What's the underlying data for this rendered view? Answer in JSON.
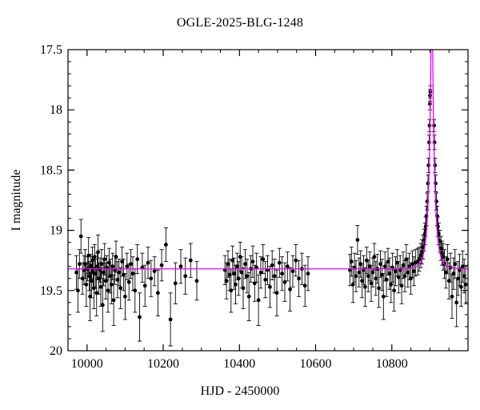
{
  "figure": {
    "title": "OGLE-2025-BLG-1248",
    "xlabel": "HJD - 2450000",
    "ylabel": "I magnitude"
  },
  "chart_data": {
    "type": "scatter",
    "title": "OGLE-2025-BLG-1248",
    "xlabel": "HJD - 2450000",
    "ylabel": "I magnitude",
    "xlim": [
      9950,
      11000
    ],
    "ylim": [
      20,
      17.5
    ],
    "y_axis_inverted": true,
    "x_ticks": [
      10000,
      10200,
      10400,
      10600,
      10800
    ],
    "x_minor_step": 50,
    "y_ticks": [
      17.5,
      18,
      18.5,
      19,
      19.5,
      20
    ],
    "y_minor_step": 0.1,
    "grid": false,
    "legend": null,
    "colors": {
      "points": "#000000",
      "model": "#f000f0",
      "frame": "#000000",
      "background": "#ffffff"
    },
    "model": {
      "type": "paczynski-point-lens",
      "t0": 10905,
      "tE": 14,
      "u0": 0.1,
      "baseline_mag": 19.32
    },
    "points": [
      [
        9972,
        19.35,
        0.14
      ],
      [
        9976,
        19.5,
        0.18
      ],
      [
        9980,
        19.28,
        0.12
      ],
      [
        9984,
        19.05,
        0.14
      ],
      [
        9988,
        19.4,
        0.13
      ],
      [
        9992,
        19.33,
        0.12
      ],
      [
        9995,
        19.28,
        0.12
      ],
      [
        9998,
        19.45,
        0.18
      ],
      [
        10001,
        19.32,
        0.1
      ],
      [
        10004,
        19.21,
        0.15
      ],
      [
        10006,
        19.38,
        0.12
      ],
      [
        10008,
        19.55,
        0.2
      ],
      [
        10010,
        19.3,
        0.1
      ],
      [
        10012,
        19.42,
        0.14
      ],
      [
        10014,
        19.25,
        0.11
      ],
      [
        10016,
        19.35,
        0.13
      ],
      [
        10018,
        19.48,
        0.17
      ],
      [
        10020,
        19.22,
        0.1
      ],
      [
        10022,
        19.36,
        0.12
      ],
      [
        10025,
        19.52,
        0.19
      ],
      [
        10027,
        19.3,
        0.11
      ],
      [
        10029,
        19.18,
        0.14
      ],
      [
        10031,
        19.4,
        0.13
      ],
      [
        10034,
        19.33,
        0.1
      ],
      [
        10036,
        19.47,
        0.16
      ],
      [
        10038,
        19.28,
        0.12
      ],
      [
        10041,
        19.62,
        0.22
      ],
      [
        10043,
        19.35,
        0.11
      ],
      [
        10046,
        19.24,
        0.13
      ],
      [
        10049,
        19.42,
        0.15
      ],
      [
        10052,
        19.31,
        0.1
      ],
      [
        10055,
        19.5,
        0.18
      ],
      [
        10058,
        19.27,
        0.12
      ],
      [
        10061,
        19.38,
        0.14
      ],
      [
        10064,
        19.45,
        0.16
      ],
      [
        10067,
        19.3,
        0.11
      ],
      [
        10070,
        19.58,
        0.21
      ],
      [
        10073,
        19.33,
        0.12
      ],
      [
        10076,
        19.22,
        0.13
      ],
      [
        10080,
        19.41,
        0.15
      ],
      [
        10084,
        19.35,
        0.11
      ],
      [
        10088,
        19.48,
        0.17
      ],
      [
        10092,
        19.26,
        0.12
      ],
      [
        10096,
        19.37,
        0.13
      ],
      [
        10100,
        19.55,
        0.19
      ],
      [
        10105,
        19.3,
        0.11
      ],
      [
        10110,
        19.43,
        0.15
      ],
      [
        10115,
        19.28,
        0.12
      ],
      [
        10120,
        19.36,
        0.14
      ],
      [
        10126,
        19.5,
        0.18
      ],
      [
        10132,
        19.24,
        0.12
      ],
      [
        10138,
        19.72,
        0.2
      ],
      [
        10145,
        19.31,
        0.12
      ],
      [
        10152,
        19.46,
        0.17
      ],
      [
        10160,
        19.27,
        0.13
      ],
      [
        10168,
        19.4,
        0.15
      ],
      [
        10177,
        19.34,
        0.12
      ],
      [
        10186,
        19.52,
        0.19
      ],
      [
        10196,
        19.29,
        0.13
      ],
      [
        10207,
        19.12,
        0.14
      ],
      [
        10219,
        19.74,
        0.22
      ],
      [
        10232,
        19.44,
        0.17
      ],
      [
        10246,
        19.3,
        0.14
      ],
      [
        10258,
        19.38,
        0.15
      ],
      [
        10272,
        19.25,
        0.14
      ],
      [
        10288,
        19.42,
        0.16
      ],
      [
        10362,
        19.33,
        0.12
      ],
      [
        10366,
        19.42,
        0.15
      ],
      [
        10370,
        19.28,
        0.11
      ],
      [
        10374,
        19.37,
        0.13
      ],
      [
        10378,
        19.5,
        0.18
      ],
      [
        10382,
        19.25,
        0.12
      ],
      [
        10386,
        19.36,
        0.13
      ],
      [
        10390,
        19.45,
        0.16
      ],
      [
        10394,
        19.3,
        0.11
      ],
      [
        10398,
        19.4,
        0.14
      ],
      [
        10402,
        19.22,
        0.12
      ],
      [
        10406,
        19.35,
        0.13
      ],
      [
        10410,
        19.48,
        0.17
      ],
      [
        10415,
        19.28,
        0.12
      ],
      [
        10420,
        19.38,
        0.14
      ],
      [
        10425,
        19.55,
        0.2
      ],
      [
        10430,
        19.32,
        0.11
      ],
      [
        10435,
        19.26,
        0.13
      ],
      [
        10440,
        19.44,
        0.15
      ],
      [
        10445,
        19.31,
        0.12
      ],
      [
        10450,
        19.58,
        0.21
      ],
      [
        10456,
        19.35,
        0.13
      ],
      [
        10462,
        19.24,
        0.12
      ],
      [
        10468,
        19.41,
        0.15
      ],
      [
        10474,
        19.33,
        0.12
      ],
      [
        10480,
        19.47,
        0.17
      ],
      [
        10486,
        19.29,
        0.12
      ],
      [
        10492,
        19.38,
        0.14
      ],
      [
        10498,
        19.52,
        0.19
      ],
      [
        10505,
        19.27,
        0.12
      ],
      [
        10512,
        19.36,
        0.14
      ],
      [
        10519,
        19.43,
        0.16
      ],
      [
        10526,
        19.3,
        0.12
      ],
      [
        10533,
        19.49,
        0.18
      ],
      [
        10540,
        19.34,
        0.13
      ],
      [
        10548,
        19.25,
        0.13
      ],
      [
        10556,
        19.4,
        0.15
      ],
      [
        10564,
        19.32,
        0.13
      ],
      [
        10572,
        19.46,
        0.17
      ],
      [
        10580,
        19.36,
        0.14
      ],
      [
        10690,
        19.33,
        0.13
      ],
      [
        10694,
        19.26,
        0.12
      ],
      [
        10698,
        19.45,
        0.15
      ],
      [
        10702,
        19.31,
        0.12
      ],
      [
        10706,
        19.38,
        0.13
      ],
      [
        10710,
        19.08,
        0.12
      ],
      [
        10714,
        19.35,
        0.12
      ],
      [
        10718,
        19.28,
        0.11
      ],
      [
        10722,
        19.42,
        0.14
      ],
      [
        10726,
        19.33,
        0.12
      ],
      [
        10730,
        19.47,
        0.16
      ],
      [
        10734,
        19.25,
        0.11
      ],
      [
        10738,
        19.38,
        0.13
      ],
      [
        10742,
        19.3,
        0.12
      ],
      [
        10746,
        19.44,
        0.15
      ],
      [
        10750,
        19.35,
        0.12
      ],
      [
        10754,
        19.22,
        0.11
      ],
      [
        10758,
        19.4,
        0.14
      ],
      [
        10762,
        19.32,
        0.12
      ],
      [
        10766,
        19.48,
        0.16
      ],
      [
        10770,
        19.28,
        0.11
      ],
      [
        10774,
        19.37,
        0.13
      ],
      [
        10778,
        19.55,
        0.19
      ],
      [
        10782,
        19.3,
        0.12
      ],
      [
        10786,
        19.41,
        0.14
      ],
      [
        10790,
        19.26,
        0.11
      ],
      [
        10794,
        19.36,
        0.13
      ],
      [
        10798,
        19.45,
        0.15
      ],
      [
        10802,
        19.31,
        0.12
      ],
      [
        10806,
        19.5,
        0.17
      ],
      [
        10810,
        19.34,
        0.12
      ],
      [
        10814,
        19.27,
        0.11
      ],
      [
        10818,
        19.39,
        0.13
      ],
      [
        10822,
        19.33,
        0.12
      ],
      [
        10826,
        19.46,
        0.15
      ],
      [
        10830,
        19.29,
        0.11
      ],
      [
        10834,
        19.38,
        0.13
      ],
      [
        10838,
        19.24,
        0.12
      ],
      [
        10842,
        19.35,
        0.12
      ],
      [
        10846,
        19.3,
        0.11
      ],
      [
        10850,
        19.4,
        0.13
      ],
      [
        10854,
        19.28,
        0.11
      ],
      [
        10858,
        19.34,
        0.12
      ],
      [
        10862,
        19.27,
        0.11
      ],
      [
        10868,
        19.26,
        0.11
      ],
      [
        10872,
        19.24,
        0.1
      ],
      [
        10876,
        19.21,
        0.1
      ],
      [
        10879,
        19.18,
        0.1
      ],
      [
        10882,
        19.14,
        0.1
      ],
      [
        10885,
        19.08,
        0.09
      ],
      [
        10887,
        19.03,
        0.09
      ],
      [
        10889,
        18.97,
        0.08
      ],
      [
        10891,
        18.88,
        0.08
      ],
      [
        10893,
        18.76,
        0.07
      ],
      [
        10895,
        18.61,
        0.07
      ],
      [
        10896.5,
        18.46,
        0.06
      ],
      [
        10898,
        18.27,
        0.06
      ],
      [
        10899,
        18.13,
        0.05
      ],
      [
        10900,
        17.95,
        0.05
      ],
      [
        10900.5,
        17.88,
        0.05
      ],
      [
        10901,
        17.85,
        0.05
      ],
      [
        10911,
        18.13,
        0.05
      ],
      [
        10912,
        18.27,
        0.06
      ],
      [
        10913.5,
        18.46,
        0.06
      ],
      [
        10915,
        18.61,
        0.07
      ],
      [
        10917,
        18.76,
        0.07
      ],
      [
        10919,
        18.88,
        0.08
      ],
      [
        10921,
        18.97,
        0.08
      ],
      [
        10923,
        19.03,
        0.09
      ],
      [
        10926,
        19.09,
        0.09
      ],
      [
        10929,
        19.15,
        0.1
      ],
      [
        10932,
        19.19,
        0.1
      ],
      [
        10935,
        19.22,
        0.11
      ],
      [
        10938,
        19.28,
        0.12
      ],
      [
        10942,
        19.35,
        0.13
      ],
      [
        10946,
        19.24,
        0.12
      ],
      [
        10950,
        19.42,
        0.15
      ],
      [
        10954,
        19.31,
        0.12
      ],
      [
        10958,
        19.55,
        0.18
      ],
      [
        10962,
        19.36,
        0.13
      ],
      [
        10966,
        19.28,
        0.12
      ],
      [
        10970,
        19.6,
        0.2
      ],
      [
        10974,
        19.4,
        0.14
      ],
      [
        10978,
        19.33,
        0.13
      ],
      [
        10982,
        19.47,
        0.16
      ],
      [
        10986,
        19.3,
        0.13
      ],
      [
        10990,
        19.38,
        0.14
      ],
      [
        10994,
        19.45,
        0.16
      ]
    ]
  }
}
